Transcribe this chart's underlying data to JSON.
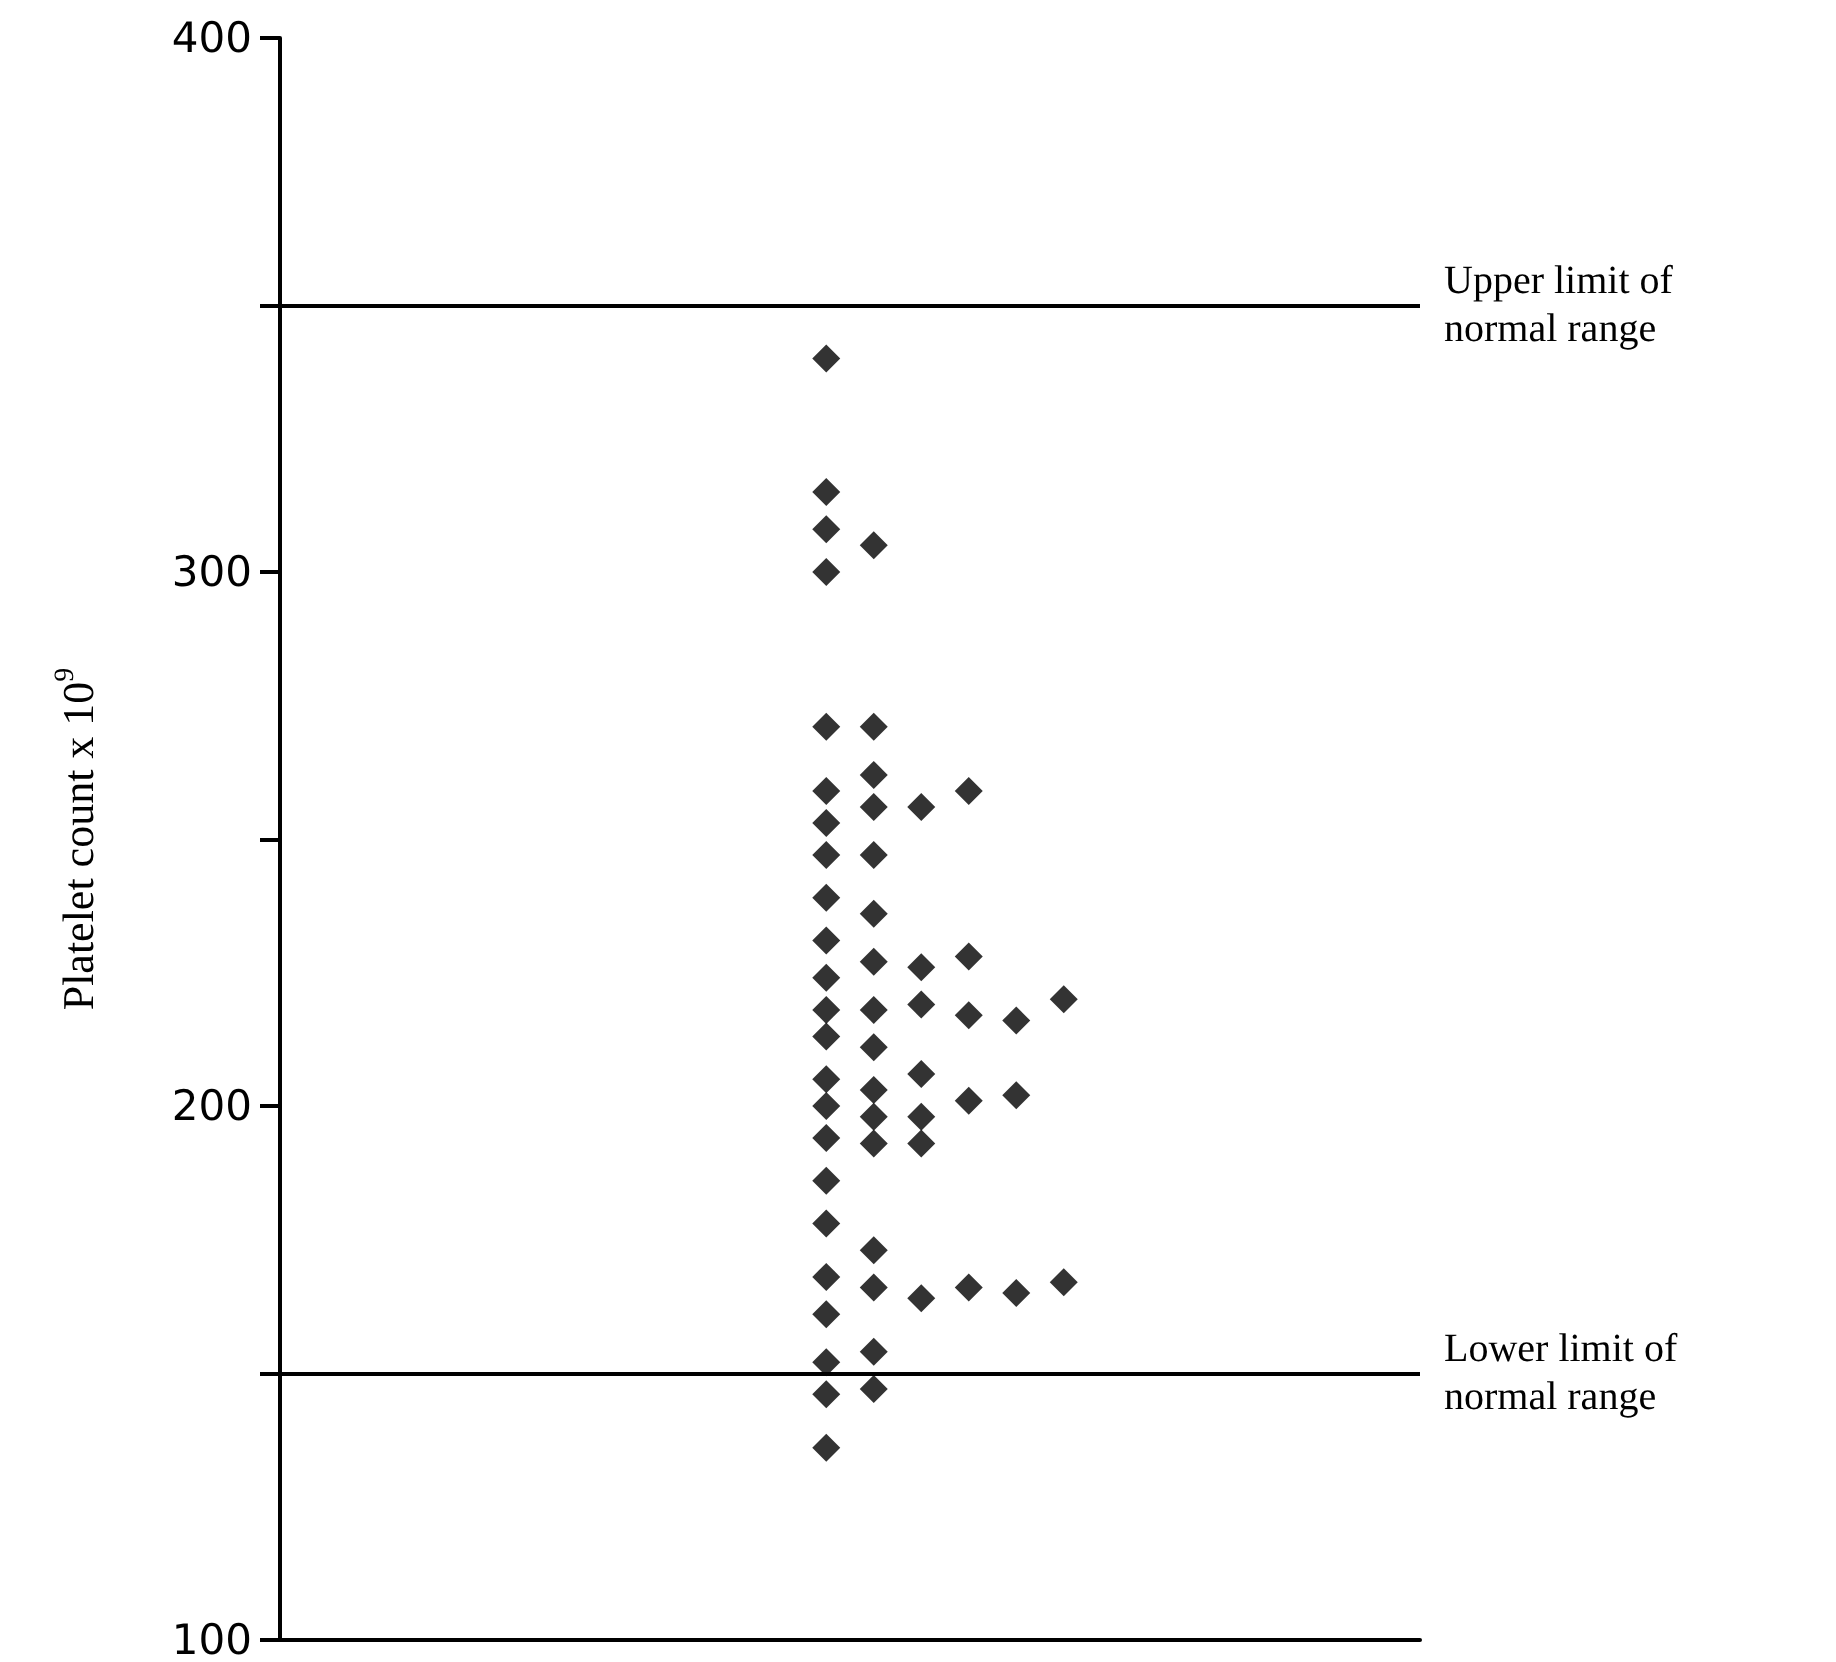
{
  "chart_data": {
    "type": "scatter",
    "ylabel": "Platelet count x 10$^{9}$",
    "categories": [
      null,
      null,
      null,
      null,
      null,
      null,
      null,
      null,
      null,
      null,
      null,
      null,
      null,
      null,
      null,
      null,
      null,
      null,
      null,
      null,
      null,
      null,
      null,
      null
    ],
    "series": [
      {
        "color": "#000000",
        "values": [
          null,
          null,
          null,
          null,
          null,
          null,
          null,
          null,
          null,
          null,
          null,
          340,
          305,
          256,
          259,
          216,
          220,
          null,
          null,
          null,
          null,
          null,
          null,
          null
        ]
      },
      {
        "color": "#000000",
        "values": [
          null,
          null,
          null,
          null,
          null,
          null,
          null,
          null,
          null,
          null,
          null,
          315,
          271,
          226,
          228,
          202,
          167,
          null,
          null,
          null,
          null,
          null,
          null,
          null
        ]
      },
      {
        "color": "#000000",
        "values": [
          null,
          null,
          null,
          null,
          null,
          null,
          null,
          null,
          null,
          null,
          null,
          308,
          262,
          219,
          217,
          165,
          null,
          null,
          null,
          null,
          null,
          null,
          null,
          null
        ]
      },
      {
        "color": "#000000",
        "values": [
          null,
          null,
          null,
          null,
          null,
          null,
          null,
          null,
          null,
          null,
          null,
          300,
          256,
          206,
          201,
          null,
          null,
          null,
          null,
          null,
          null,
          null,
          null,
          null
        ]
      },
      {
        "color": "#000000",
        "values": [
          null,
          null,
          null,
          null,
          null,
          null,
          null,
          null,
          null,
          null,
          null,
          271,
          247,
          198,
          166,
          null,
          null,
          null,
          null,
          null,
          null,
          null,
          null,
          null
        ]
      },
      {
        "color": "#000000",
        "values": [
          null,
          null,
          null,
          null,
          null,
          null,
          null,
          null,
          null,
          null,
          null,
          259,
          236,
          193,
          null,
          null,
          null,
          null,
          null,
          null,
          null,
          null,
          null,
          null
        ]
      },
      {
        "color": "#000000",
        "values": [
          null,
          null,
          null,
          null,
          null,
          null,
          null,
          null,
          null,
          null,
          null,
          253,
          227,
          164,
          null,
          null,
          null,
          null,
          null,
          null,
          null,
          null,
          null,
          null
        ]
      },
      {
        "color": "#000000",
        "values": [
          null,
          null,
          null,
          null,
          null,
          null,
          null,
          null,
          null,
          null,
          null,
          247,
          218,
          null,
          null,
          null,
          null,
          null,
          null,
          null,
          null,
          null,
          null,
          null
        ]
      },
      {
        "color": "#000000",
        "values": [
          null,
          null,
          null,
          null,
          null,
          null,
          null,
          null,
          null,
          null,
          null,
          239,
          211,
          null,
          null,
          null,
          null,
          null,
          null,
          null,
          null,
          null,
          null,
          null
        ]
      },
      {
        "color": "#000000",
        "values": [
          null,
          null,
          null,
          null,
          null,
          null,
          null,
          null,
          null,
          null,
          null,
          231,
          203,
          null,
          null,
          null,
          null,
          null,
          null,
          null,
          null,
          null,
          null,
          null
        ]
      },
      {
        "color": "#000000",
        "values": [
          null,
          null,
          null,
          null,
          null,
          null,
          null,
          null,
          null,
          null,
          null,
          224,
          198,
          null,
          null,
          null,
          null,
          null,
          null,
          null,
          null,
          null,
          null,
          null
        ]
      },
      {
        "color": "#000000",
        "values": [
          null,
          null,
          null,
          null,
          null,
          null,
          null,
          null,
          null,
          null,
          null,
          218,
          193,
          null,
          null,
          null,
          null,
          null,
          null,
          null,
          null,
          null,
          null,
          null
        ]
      },
      {
        "color": "#000000",
        "values": [
          null,
          null,
          null,
          null,
          null,
          null,
          null,
          null,
          null,
          null,
          null,
          213,
          173,
          null,
          null,
          null,
          null,
          null,
          null,
          null,
          null,
          null,
          null,
          null
        ]
      },
      {
        "color": "#000000",
        "values": [
          null,
          null,
          null,
          null,
          null,
          null,
          null,
          null,
          null,
          null,
          null,
          205,
          166,
          null,
          null,
          null,
          null,
          null,
          null,
          null,
          null,
          null,
          null,
          null
        ]
      },
      {
        "color": "#000000",
        "values": [
          null,
          null,
          null,
          null,
          null,
          null,
          null,
          null,
          null,
          null,
          null,
          200,
          154,
          null,
          null,
          null,
          null,
          null,
          null,
          null,
          null,
          null,
          null,
          null
        ]
      },
      {
        "color": "#000000",
        "values": [
          null,
          null,
          null,
          null,
          null,
          null,
          null,
          null,
          null,
          null,
          null,
          194,
          147,
          null,
          null,
          null,
          null,
          null,
          null,
          null,
          null,
          null,
          null,
          null
        ]
      },
      {
        "color": "#000000",
        "values": [
          null,
          null,
          null,
          null,
          null,
          null,
          null,
          null,
          null,
          null,
          null,
          186,
          null,
          null,
          null,
          null,
          null,
          null,
          null,
          null,
          null,
          null,
          null,
          null
        ]
      },
      {
        "color": "#000000",
        "values": [
          null,
          null,
          null,
          null,
          null,
          null,
          null,
          null,
          null,
          null,
          null,
          178,
          null,
          null,
          null,
          null,
          null,
          null,
          null,
          null,
          null,
          null,
          null,
          null
        ]
      },
      {
        "color": "#000000",
        "values": [
          null,
          null,
          null,
          null,
          null,
          null,
          null,
          null,
          null,
          null,
          null,
          168,
          null,
          null,
          null,
          null,
          null,
          null,
          null,
          null,
          null,
          null,
          null,
          null
        ]
      },
      {
        "color": "#000000",
        "values": [
          null,
          null,
          null,
          null,
          null,
          null,
          null,
          null,
          null,
          null,
          null,
          161,
          null,
          null,
          null,
          null,
          null,
          null,
          null,
          null,
          null,
          null,
          null,
          null
        ]
      },
      {
        "color": "#000000",
        "values": [
          null,
          null,
          null,
          null,
          null,
          null,
          null,
          null,
          null,
          null,
          null,
          152,
          null,
          null,
          null,
          null,
          null,
          null,
          null,
          null,
          null,
          null,
          null,
          null
        ]
      },
      {
        "color": "#000000",
        "values": [
          null,
          null,
          null,
          null,
          null,
          null,
          null,
          null,
          null,
          null,
          null,
          146,
          null,
          null,
          null,
          null,
          null,
          null,
          null,
          null,
          null,
          null,
          null,
          null
        ]
      },
      {
        "color": "#000000",
        "values": [
          null,
          null,
          null,
          null,
          null,
          null,
          null,
          null,
          null,
          null,
          null,
          136,
          null,
          null,
          null,
          null,
          null,
          null,
          null,
          null,
          null,
          null,
          null,
          null
        ]
      }
    ],
    "marker": "diamond",
    "ylim": [
      100,
      400
    ],
    "yticks": [
      100,
      {
        "value": 150,
        "label": null
      },
      200,
      {
        "value": 250,
        "label": null
      },
      300,
      {
        "value": 350,
        "label": null
      },
      400
    ],
    "tick_labels": "y",
    "grid": false,
    "ref_lines": [
      {
        "axis": "y",
        "value": 350,
        "label": "Upper limit of normal range",
        "color": "#000000"
      },
      {
        "axis": "y",
        "value": 150,
        "label": "Lower limit of normal range",
        "color": "#000000"
      }
    ]
  }
}
